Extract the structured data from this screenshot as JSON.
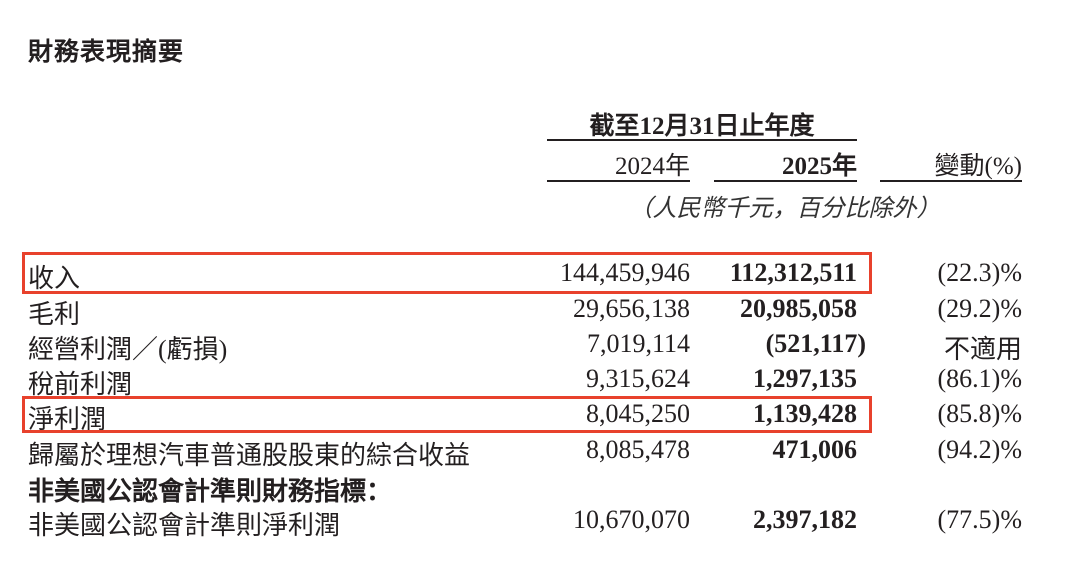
{
  "title": "財務表現摘要",
  "header": {
    "period": "截至12月31日止年度",
    "col_2024": "2024年",
    "col_2025": "2025年",
    "col_change": "變動(%)",
    "unit_note": "（人民幣千元，百分比除外）"
  },
  "highlight_color": "#e8412c",
  "rows": [
    {
      "label": "收入",
      "v2024": "144,459,946",
      "v2025": "112,312,511",
      "change": "(22.3)%",
      "highlighted": true
    },
    {
      "label": "毛利",
      "v2024": "29,656,138",
      "v2025": "20,985,058",
      "change": "(29.2)%"
    },
    {
      "label": "經營利潤／(虧損)",
      "v2024": "7,019,114",
      "v2025": "(521,117)",
      "change": "不適用"
    },
    {
      "label": "稅前利潤",
      "v2024": "9,315,624",
      "v2025": "1,297,135",
      "change": "(86.1)%"
    },
    {
      "label": "淨利潤",
      "v2024": "8,045,250",
      "v2025": "1,139,428",
      "change": "(85.8)%",
      "highlighted": true
    },
    {
      "label": "歸屬於理想汽車普通股股東的綜合收益",
      "v2024": "8,085,478",
      "v2025": "471,006",
      "change": "(94.2)%"
    },
    {
      "label": "非美國公認會計準則財務指標："
    },
    {
      "label": "非美國公認會計準則淨利潤",
      "v2024": "10,670,070",
      "v2025": "2,397,182",
      "change": "(77.5)%"
    }
  ]
}
